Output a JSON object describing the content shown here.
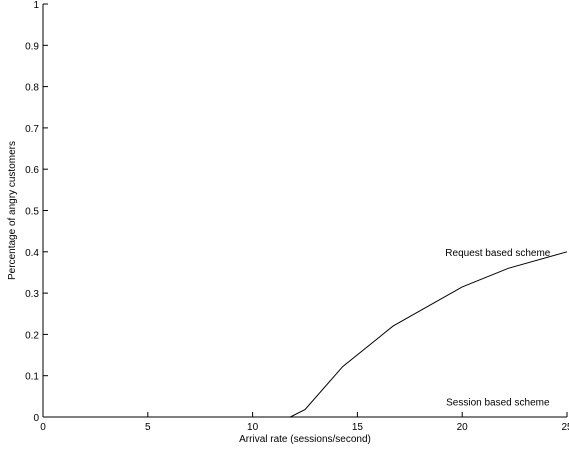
{
  "chart_data": {
    "type": "line",
    "xlabel": "Arrival rate (sessions/second)",
    "ylabel": "Percentage of angry customers",
    "xlim": [
      0,
      25
    ],
    "ylim": [
      0,
      1
    ],
    "xticks": [
      0,
      5,
      10,
      15,
      20,
      25
    ],
    "xtick_labels": [
      "0",
      "5",
      "10",
      "15",
      "20",
      "25"
    ],
    "yticks": [
      0,
      0.1,
      0.2,
      0.3,
      0.4,
      0.5,
      0.6,
      0.7,
      0.8,
      0.9,
      1
    ],
    "ytick_labels": [
      "0",
      "0.1",
      "0.2",
      "0.3",
      "0.4",
      "0.5",
      "0.6",
      "0.7",
      "0.8",
      "0.9",
      "1"
    ],
    "grid": false,
    "series": [
      {
        "x": [
          0,
          5,
          10,
          11.8,
          12.5,
          14.3,
          16.7,
          20,
          22.2,
          25
        ],
        "values": [
          0,
          0,
          0,
          0,
          0.018,
          0.122,
          0.22,
          0.315,
          0.36,
          0.4
        ],
        "color": "#000000",
        "dash": "solid"
      },
      {
        "x": [
          0,
          5,
          10,
          15,
          20,
          25
        ],
        "values": [
          0,
          0,
          0,
          0,
          0,
          0
        ],
        "color": "#000000",
        "dash": "dashed"
      }
    ],
    "annotations": [
      {
        "text": "Request based scheme",
        "x": 21.7,
        "y": 0.39
      },
      {
        "text": "Session based scheme",
        "x": 21.7,
        "y": 0.028
      }
    ]
  }
}
